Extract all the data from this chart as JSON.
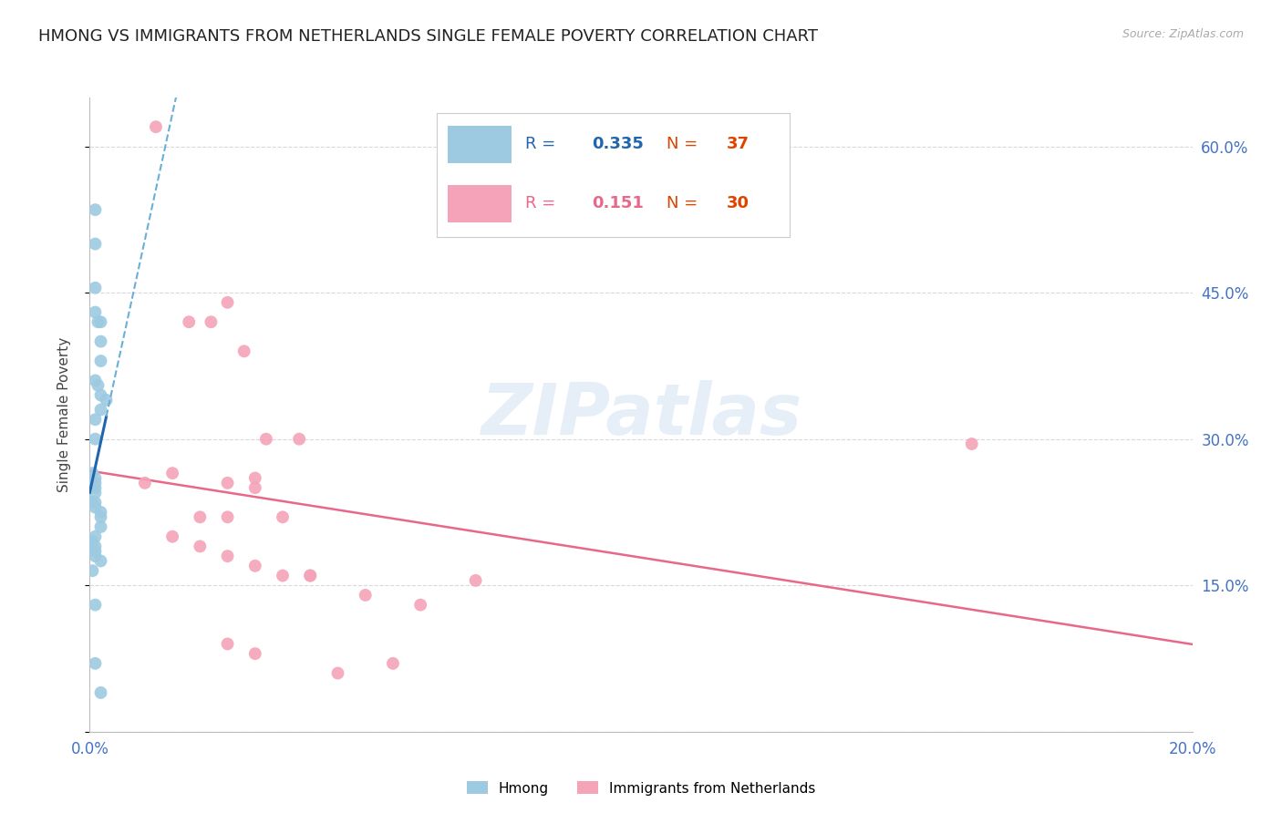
{
  "title": "HMONG VS IMMIGRANTS FROM NETHERLANDS SINGLE FEMALE POVERTY CORRELATION CHART",
  "source": "Source: ZipAtlas.com",
  "ylabel": "Single Female Poverty",
  "watermark": "ZIPatlas",
  "series1_label": "Hmong",
  "series2_label": "Immigrants from Netherlands",
  "R1": 0.335,
  "N1": 37,
  "R2": 0.151,
  "N2": 30,
  "color1": "#9ecae1",
  "color2": "#f4a3b8",
  "line1_color": "#2166ac",
  "line1_dash_color": "#6baed6",
  "line2_color": "#e8688a",
  "xmin": 0.0,
  "xmax": 0.2,
  "ymin": 0.0,
  "ymax": 0.65,
  "xticks": [
    0.0,
    0.04,
    0.08,
    0.12,
    0.16,
    0.2
  ],
  "xtick_labels": [
    "0.0%",
    "",
    "",
    "",
    "",
    "20.0%"
  ],
  "ytick_positions": [
    0.0,
    0.15,
    0.3,
    0.45,
    0.6
  ],
  "ytick_labels": [
    "",
    "15.0%",
    "30.0%",
    "45.0%",
    "60.0%"
  ],
  "hmong_x": [
    0.001,
    0.001,
    0.001,
    0.001,
    0.0015,
    0.002,
    0.002,
    0.002,
    0.001,
    0.0015,
    0.002,
    0.003,
    0.002,
    0.001,
    0.001,
    0.0005,
    0.0005,
    0.001,
    0.001,
    0.001,
    0.001,
    0.0005,
    0.001,
    0.001,
    0.002,
    0.002,
    0.002,
    0.001,
    0.0005,
    0.001,
    0.001,
    0.001,
    0.002,
    0.0005,
    0.001,
    0.001,
    0.002
  ],
  "hmong_y": [
    0.535,
    0.5,
    0.455,
    0.43,
    0.42,
    0.42,
    0.4,
    0.38,
    0.36,
    0.355,
    0.345,
    0.34,
    0.33,
    0.32,
    0.3,
    0.265,
    0.255,
    0.26,
    0.255,
    0.25,
    0.245,
    0.235,
    0.235,
    0.23,
    0.225,
    0.22,
    0.21,
    0.2,
    0.195,
    0.19,
    0.185,
    0.18,
    0.175,
    0.165,
    0.13,
    0.07,
    0.04
  ],
  "neth_x": [
    0.012,
    0.018,
    0.022,
    0.025,
    0.028,
    0.032,
    0.038,
    0.01,
    0.015,
    0.02,
    0.025,
    0.03,
    0.035,
    0.015,
    0.02,
    0.025,
    0.03,
    0.035,
    0.04,
    0.05,
    0.06,
    0.07,
    0.025,
    0.03,
    0.045,
    0.055,
    0.025,
    0.03,
    0.16,
    0.04
  ],
  "neth_y": [
    0.62,
    0.42,
    0.42,
    0.44,
    0.39,
    0.3,
    0.3,
    0.255,
    0.265,
    0.22,
    0.255,
    0.26,
    0.22,
    0.2,
    0.19,
    0.18,
    0.17,
    0.16,
    0.16,
    0.14,
    0.13,
    0.155,
    0.09,
    0.08,
    0.06,
    0.07,
    0.22,
    0.25,
    0.295,
    0.16
  ],
  "background_color": "#ffffff",
  "grid_color": "#d0d0d0",
  "title_fontsize": 13,
  "axis_label_fontsize": 11,
  "tick_label_color": "#4472c4",
  "tick_label_fontsize": 12
}
